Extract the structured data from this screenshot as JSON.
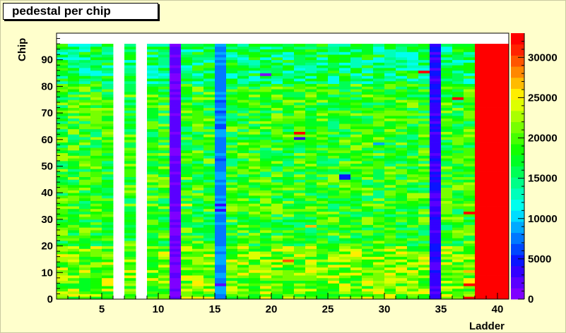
{
  "chart_data": {
    "type": "heatmap",
    "title": "pedestal per chip",
    "xlabel": "Ladder",
    "ylabel": "Chip",
    "xlim": [
      1,
      41
    ],
    "ylim": [
      0,
      100
    ],
    "x_ticks": [
      5,
      10,
      15,
      20,
      25,
      30,
      35,
      40
    ],
    "y_ticks": [
      0,
      10,
      20,
      30,
      40,
      50,
      60,
      70,
      80,
      90
    ],
    "z_range": [
      0,
      33000
    ],
    "z_ticks": [
      0,
      5000,
      10000,
      15000,
      20000,
      25000,
      30000
    ],
    "palette": [
      "#7f00ff",
      "#5a00ff",
      "#3300ff",
      "#0a14ff",
      "#0046ff",
      "#0078ff",
      "#00aaff",
      "#00ddff",
      "#00ffee",
      "#00ffbb",
      "#00ff88",
      "#00ff55",
      "#00ff22",
      "#11ff00",
      "#44ff00",
      "#77ff00",
      "#aaff00",
      "#ddff00",
      "#ffee00",
      "#ffbb00",
      "#ff8800",
      "#ff5500",
      "#ff2200",
      "#ff0000"
    ],
    "base_level": 18500,
    "empty_ladders": [
      6,
      8
    ],
    "ladder_levels": {
      "11": 1500,
      "15": 8000,
      "34": 3500,
      "38": 33000,
      "39": 33000,
      "40": 33000
    },
    "chips_filled": [
      0,
      95
    ],
    "special_cells": [
      {
        "ladder": 15,
        "chip": 5,
        "value": 1800
      },
      {
        "ladder": 15,
        "chip": 33,
        "value": 3500
      },
      {
        "ladder": 15,
        "chip": 35,
        "value": 3000
      },
      {
        "ladder": 37,
        "chip": 0,
        "value": 33000
      },
      {
        "ladder": 37,
        "chip": 5,
        "value": 33000
      },
      {
        "ladder": 37,
        "chip": 10,
        "value": 27000
      },
      {
        "ladder": 37,
        "chip": 32,
        "value": 33000
      },
      {
        "ladder": 36,
        "chip": 75,
        "value": 33000
      },
      {
        "ladder": 33,
        "chip": 85,
        "value": 33000
      },
      {
        "ladder": 19,
        "chip": 84,
        "value": 0
      },
      {
        "ladder": 22,
        "chip": 62,
        "value": 33000
      },
      {
        "ladder": 22,
        "chip": 60,
        "value": 3000
      },
      {
        "ladder": 26,
        "chip": 46,
        "value": 5000
      },
      {
        "ladder": 26,
        "chip": 45,
        "value": 5000
      },
      {
        "ladder": 29,
        "chip": 58,
        "value": 9000
      },
      {
        "ladder": 12,
        "chip": 35,
        "value": 26000
      },
      {
        "ladder": 23,
        "chip": 27,
        "value": 27000
      },
      {
        "ladder": 21,
        "chip": 14,
        "value": 30000
      }
    ]
  }
}
